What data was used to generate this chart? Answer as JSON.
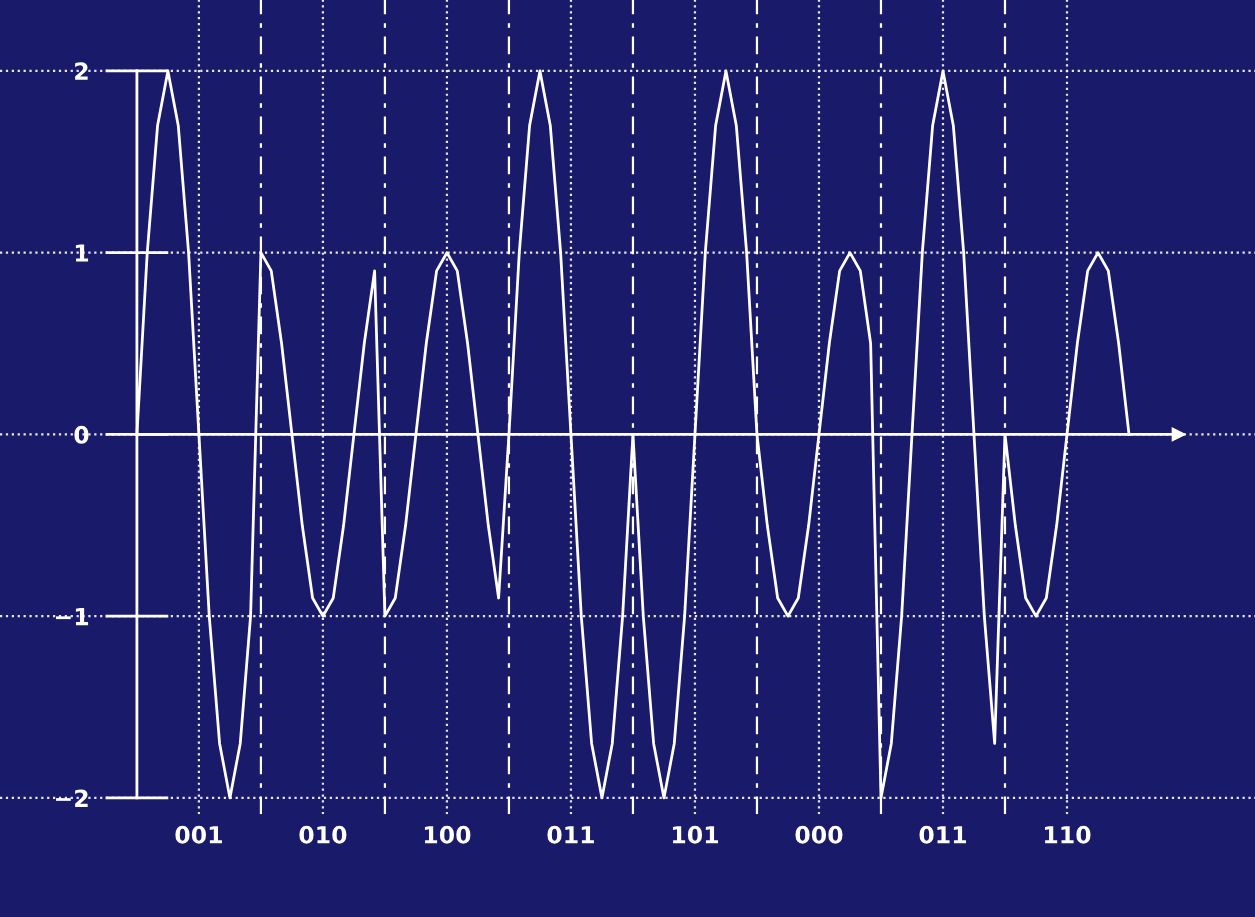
{
  "chart_data": {
    "type": "line",
    "categories": [
      null,
      null,
      null,
      null,
      null,
      null,
      "001",
      null,
      null,
      null,
      null,
      null,
      null,
      null,
      null,
      null,
      null,
      null,
      "010",
      null,
      null,
      null,
      null,
      null,
      null,
      null,
      null,
      null,
      null,
      null,
      "100",
      null,
      null,
      null,
      null,
      null,
      null,
      null,
      null,
      null,
      null,
      null,
      "011",
      null,
      null,
      null,
      null,
      null,
      null,
      null,
      null,
      null,
      null,
      null,
      "101",
      null,
      null,
      null,
      null,
      null,
      null,
      null,
      null,
      null,
      null,
      null,
      "000",
      null,
      null,
      null,
      null,
      null,
      null,
      null,
      null,
      null,
      null,
      null,
      "011",
      null,
      null,
      null,
      null,
      null,
      null,
      null,
      null,
      null,
      null,
      null,
      "110",
      null,
      null,
      null,
      null,
      null,
      null
    ],
    "series": [
      {
        "color": "#ffffff",
        "values": [
          0,
          1,
          1.7,
          2,
          1.7,
          1,
          0,
          -1,
          -1.7,
          -2,
          -1.7,
          -1,
          1,
          0.9,
          0.5,
          0,
          -0.5,
          -0.9,
          -1,
          -0.9,
          -0.5,
          0,
          0.5,
          0.9,
          -1,
          -0.9,
          -0.5,
          0,
          0.5,
          0.9,
          1,
          0.9,
          0.5,
          0,
          -0.5,
          -0.9,
          0,
          1,
          1.7,
          2,
          1.7,
          1,
          0,
          -1,
          -1.7,
          -2,
          -1.7,
          -1,
          0,
          -1,
          -1.7,
          -2,
          -1.7,
          -1,
          0,
          1,
          1.7,
          2,
          1.7,
          1,
          0,
          -0.5,
          -0.9,
          -1,
          -0.9,
          -0.5,
          0,
          0.5,
          0.9,
          1,
          0.9,
          0.5,
          -2,
          -1.7,
          -1,
          0,
          1,
          1.7,
          2,
          1.7,
          1,
          0,
          -1,
          -1.7,
          0,
          -0.5,
          -0.9,
          -1,
          -0.9,
          -0.5,
          0,
          0.5,
          0.9,
          1,
          0.9,
          0.5,
          0
        ]
      }
    ],
    "ylim": [
      -2.09,
      2.39
    ],
    "yticks": [
      {
        "value": -2,
        "label": "−2"
      },
      {
        "value": -1,
        "label": "−1"
      },
      0,
      1,
      2
    ],
    "grid": true,
    "line_style": "solid"
  }
}
